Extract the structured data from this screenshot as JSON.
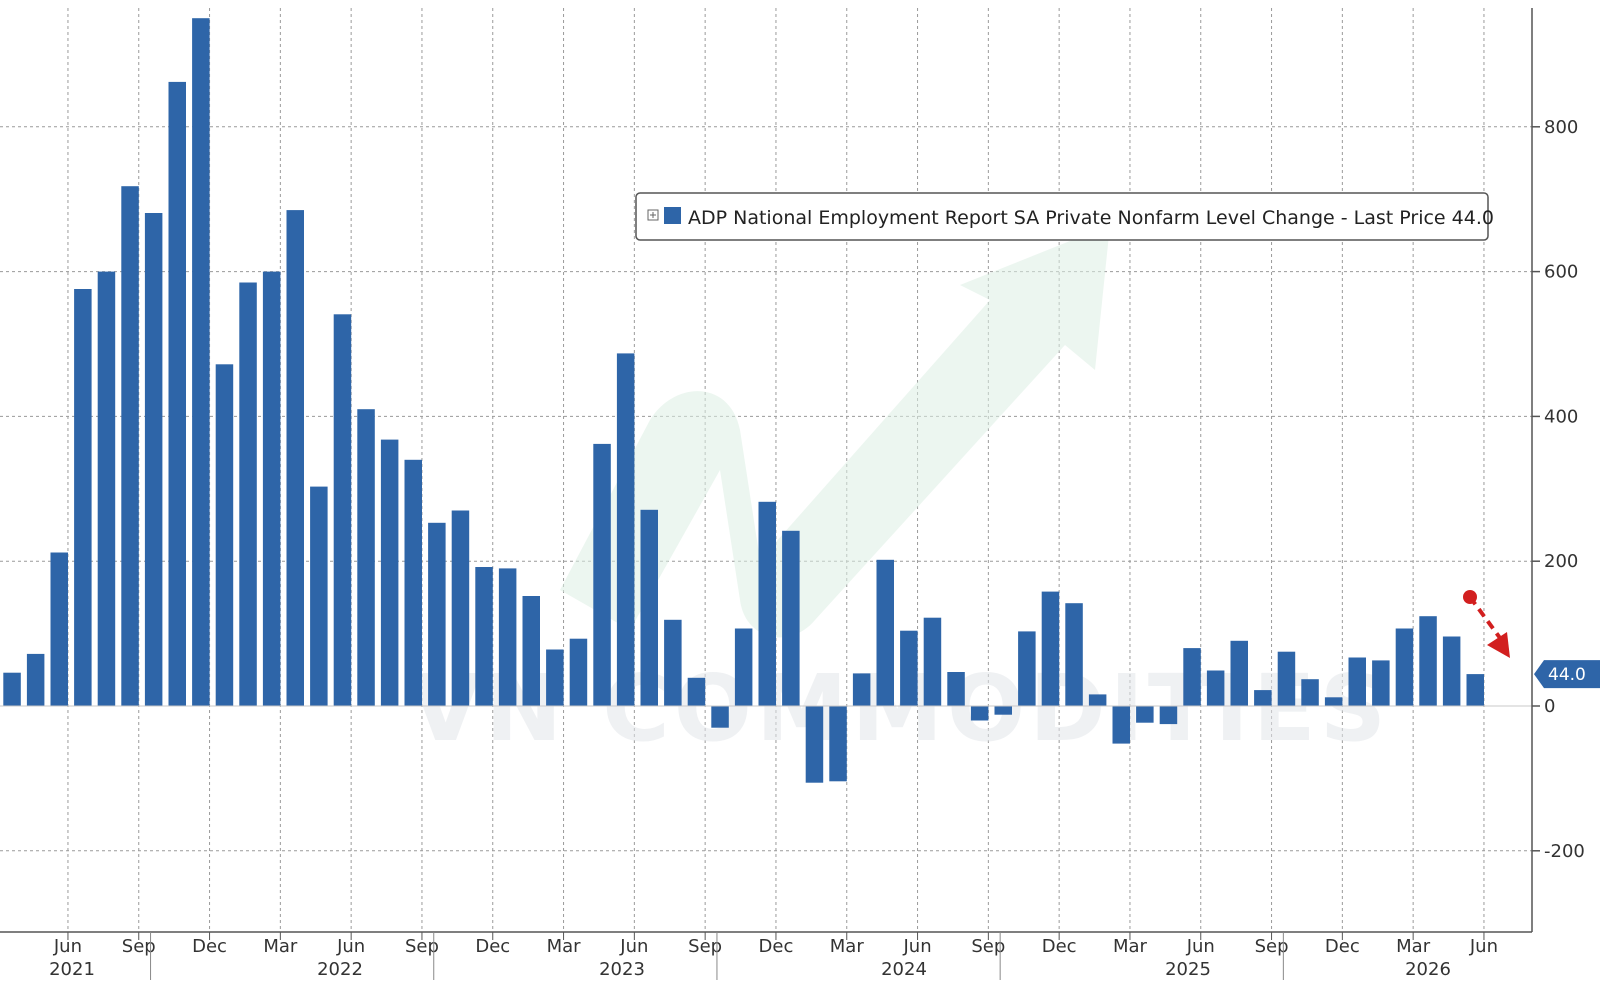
{
  "chart_data": {
    "type": "bar",
    "legend": {
      "label": "ADP National Employment Report SA Private Nonfarm Level Change - Last Price 44.0",
      "series_color": "#2e65a8",
      "placement": "top-center"
    },
    "last_value_label": "44.0",
    "watermark": "VN COMMODITIES",
    "ylim": [
      -310,
      960
    ],
    "yticks": [
      -200,
      0,
      200,
      400,
      600,
      800
    ],
    "ytick_labels": [
      "-200",
      "0",
      "200",
      "400",
      "600",
      "800"
    ],
    "x_month_labels": [
      "Jun",
      "Sep",
      "Dec",
      "Mar",
      "Jun",
      "Sep",
      "Dec",
      "Mar",
      "Jun",
      "Sep",
      "Dec",
      "Mar",
      "Jun",
      "Sep",
      "Dec",
      "Mar",
      "Jun",
      "Sep",
      "Dec",
      "Mar",
      "Jun"
    ],
    "x_year_labels": [
      "2021",
      "2022",
      "2023",
      "2024",
      "2025",
      "2026"
    ],
    "grid": true,
    "series": [
      {
        "values": [
          46,
          72,
          212,
          576,
          600,
          718,
          681,
          862,
          950,
          472,
          585,
          600,
          685,
          303,
          541,
          410,
          368,
          340,
          253,
          270,
          192,
          190,
          152,
          78,
          93,
          362,
          487,
          271,
          119,
          39,
          -30,
          107,
          282,
          242,
          -106,
          -104,
          45,
          202,
          104,
          122,
          47,
          -20,
          -12,
          103,
          158,
          142,
          16,
          -52,
          -23,
          -25,
          80,
          49,
          90,
          22,
          75,
          37,
          12,
          67,
          63,
          107,
          124,
          96,
          44
        ]
      }
    ]
  }
}
